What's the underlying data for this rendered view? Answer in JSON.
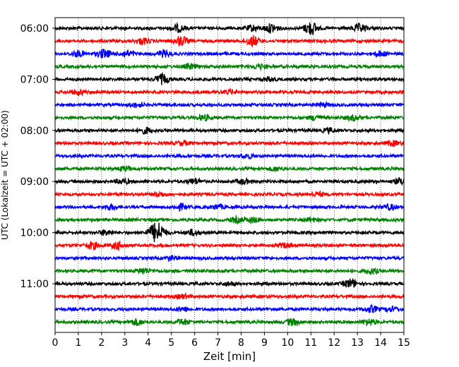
{
  "chart_data": {
    "type": "line",
    "title": "",
    "xlabel": "Zeit  [min]",
    "ylabel": "UTC (Lokalzeit = UTC + 02:00)",
    "xlim": [
      0,
      15
    ],
    "x_ticks": [
      0,
      1,
      2,
      3,
      4,
      5,
      6,
      7,
      8,
      9,
      10,
      11,
      12,
      13,
      14,
      15
    ],
    "y_ticks": [
      {
        "label": "06:00",
        "row": 0
      },
      {
        "label": "07:00",
        "row": 4
      },
      {
        "label": "08:00",
        "row": 8
      },
      {
        "label": "09:00",
        "row": 12
      },
      {
        "label": "10:00",
        "row": 16
      },
      {
        "label": "11:00",
        "row": 20
      }
    ],
    "grid": {
      "x": true,
      "y": false,
      "style": "dotted"
    },
    "trace_colors": [
      "#000000",
      "#ff0000",
      "#0000ff",
      "#008000"
    ],
    "series": [
      {
        "start": "06:00",
        "color": "#000000",
        "events": [
          [
            5.3,
            1.8
          ],
          [
            8.5,
            1.4
          ],
          [
            9.3,
            2.2
          ],
          [
            11.0,
            3.4
          ],
          [
            13.1,
            2.0
          ]
        ]
      },
      {
        "start": "06:15",
        "color": "#ff0000",
        "events": [
          [
            3.8,
            1.5
          ],
          [
            5.4,
            2.4
          ],
          [
            8.5,
            2.6
          ]
        ]
      },
      {
        "start": "06:30",
        "color": "#0000ff",
        "events": [
          [
            1.0,
            1.4
          ],
          [
            2.1,
            2.2
          ],
          [
            3.1,
            1.6
          ],
          [
            4.7,
            1.6
          ],
          [
            14.0,
            1.2
          ]
        ]
      },
      {
        "start": "06:45",
        "color": "#008000",
        "events": [
          [
            5.8,
            1.2
          ],
          [
            8.8,
            1.1
          ]
        ]
      },
      {
        "start": "07:00",
        "color": "#000000",
        "events": [
          [
            4.6,
            2.4
          ],
          [
            9.2,
            1.0
          ]
        ]
      },
      {
        "start": "07:15",
        "color": "#ff0000",
        "events": [
          [
            1.0,
            1.2
          ],
          [
            7.5,
            1.0
          ]
        ]
      },
      {
        "start": "07:30",
        "color": "#0000ff",
        "events": [
          [
            3.5,
            1.0
          ],
          [
            11.5,
            1.0
          ]
        ]
      },
      {
        "start": "07:45",
        "color": "#008000",
        "events": [
          [
            6.4,
            1.3
          ],
          [
            11.2,
            1.2
          ],
          [
            12.8,
            1.3
          ]
        ]
      },
      {
        "start": "08:00",
        "color": "#000000",
        "events": [
          [
            3.9,
            1.4
          ],
          [
            11.8,
            1.1
          ]
        ]
      },
      {
        "start": "08:15",
        "color": "#ff0000",
        "events": [
          [
            5.5,
            1.0
          ],
          [
            14.5,
            1.2
          ]
        ]
      },
      {
        "start": "08:30",
        "color": "#0000ff",
        "events": [
          [
            8.3,
            1.0
          ]
        ]
      },
      {
        "start": "08:45",
        "color": "#008000",
        "events": [
          [
            3.0,
            1.1
          ],
          [
            9.5,
            1.0
          ]
        ]
      },
      {
        "start": "09:00",
        "color": "#000000",
        "events": [
          [
            2.9,
            1.3
          ],
          [
            6.0,
            1.4
          ],
          [
            8.1,
            1.1
          ],
          [
            14.9,
            1.6
          ]
        ]
      },
      {
        "start": "09:15",
        "color": "#ff0000",
        "events": [
          [
            4.5,
            1.0
          ],
          [
            11.3,
            1.0
          ]
        ]
      },
      {
        "start": "09:30",
        "color": "#0000ff",
        "events": [
          [
            2.4,
            1.3
          ],
          [
            5.4,
            1.4
          ],
          [
            7.0,
            1.1
          ],
          [
            14.4,
            1.2
          ]
        ]
      },
      {
        "start": "09:45",
        "color": "#008000",
        "events": [
          [
            7.8,
            1.3
          ],
          [
            8.5,
            1.2
          ],
          [
            11.0,
            1.0
          ]
        ]
      },
      {
        "start": "10:00",
        "color": "#000000",
        "events": [
          [
            2.2,
            1.3
          ],
          [
            4.2,
            2.2
          ],
          [
            4.45,
            4.2
          ],
          [
            5.9,
            1.3
          ]
        ]
      },
      {
        "start": "10:15",
        "color": "#ff0000",
        "events": [
          [
            1.6,
            1.8
          ],
          [
            2.7,
            1.8
          ],
          [
            9.9,
            1.0
          ]
        ]
      },
      {
        "start": "10:30",
        "color": "#0000ff",
        "events": [
          [
            5.0,
            1.0
          ]
        ]
      },
      {
        "start": "10:45",
        "color": "#008000",
        "events": [
          [
            3.8,
            1.4
          ],
          [
            13.6,
            1.3
          ]
        ]
      },
      {
        "start": "11:00",
        "color": "#000000",
        "events": [
          [
            12.7,
            2.2
          ],
          [
            7.5,
            1.0
          ]
        ]
      },
      {
        "start": "11:15",
        "color": "#ff0000",
        "events": [
          [
            5.5,
            1.0
          ]
        ]
      },
      {
        "start": "11:30",
        "color": "#0000ff",
        "events": [
          [
            5.5,
            1.1
          ],
          [
            13.6,
            1.6
          ],
          [
            14.5,
            1.1
          ]
        ]
      },
      {
        "start": "11:45",
        "color": "#008000",
        "events": [
          [
            3.5,
            1.5
          ],
          [
            5.5,
            1.3
          ],
          [
            10.2,
            1.6
          ],
          [
            13.5,
            1.6
          ]
        ]
      }
    ]
  }
}
